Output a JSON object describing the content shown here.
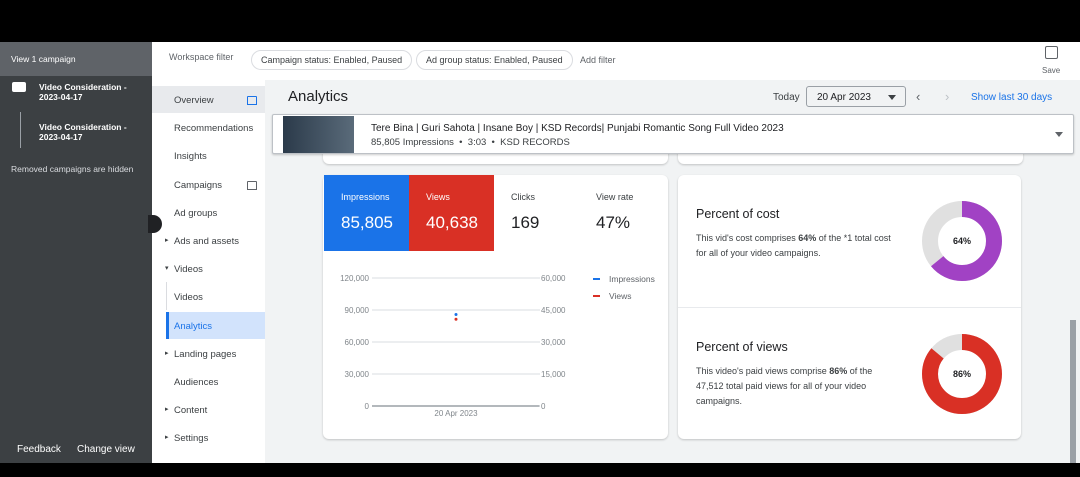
{
  "sidebar": {
    "header": "View 1 campaign",
    "campaigns": [
      "Video Consideration - 2023-04-17",
      "Video Consideration - 2023-04-17"
    ],
    "note": "Removed campaigns are hidden",
    "footer": [
      "Feedback",
      "Change view"
    ]
  },
  "topbar": {
    "workspace_filter": "Workspace filter",
    "filters": [
      "Campaign status: Enabled, Paused",
      "Ad group status: Enabled, Paused"
    ],
    "add_filter": "Add filter",
    "save": "Save"
  },
  "nav": [
    "Overview",
    "Recommendations",
    "Insights",
    "Campaigns",
    "Ad groups",
    "Ads and assets",
    "Videos",
    "Videos",
    "Analytics",
    "Landing pages",
    "Audiences",
    "Content",
    "Settings"
  ],
  "header": {
    "title": "Analytics",
    "today": "Today",
    "date": "20 Apr 2023",
    "show_last": "Show last 30 days"
  },
  "video": {
    "title": "Tere Bina | Guri Sahota | Insane Boy | KSD Records| Punjabi Romantic Song Full Video 2023",
    "meta": "85,805 Impressions  •  3:03  •  KSD RECORDS"
  },
  "metrics": [
    {
      "label": "Impressions",
      "value": "85,805"
    },
    {
      "label": "Views",
      "value": "40,638"
    },
    {
      "label": "Clicks",
      "value": "169"
    },
    {
      "label": "View rate",
      "value": "47%"
    }
  ],
  "chart_data": {
    "type": "line",
    "x": [
      "20 Apr 2023"
    ],
    "series": [
      {
        "name": "Impressions",
        "color": "#1a73e8",
        "values": [
          85805
        ]
      },
      {
        "name": "Views",
        "color": "#d93025",
        "axis": "y2",
        "values": [
          40638
        ]
      }
    ],
    "ylim": [
      0,
      120000
    ],
    "yticks": [
      0,
      {
        "value": 30000,
        "label": "30,000"
      },
      {
        "value": 60000,
        "label": "60,000"
      },
      {
        "value": 90000,
        "label": "90,000"
      },
      {
        "value": 120000,
        "label": "120,000"
      }
    ],
    "y2lim": [
      0,
      60000
    ],
    "y2ticks": [
      0,
      {
        "value": 15000,
        "label": "15,000"
      },
      {
        "value": 30000,
        "label": "30,000"
      },
      {
        "value": 45000,
        "label": "45,000"
      },
      {
        "value": 60000,
        "label": "60,000"
      }
    ],
    "grid": true,
    "legend": "top-right"
  },
  "cost": {
    "title": "Percent of cost",
    "text": [
      "This vid's cost comprises ",
      "64%",
      " of the *1 total cost for all of your video campaigns."
    ],
    "value": 64,
    "value_label": "64%",
    "color": "#a142c4"
  },
  "views": {
    "title": "Percent of views",
    "text": [
      "This video's paid views comprise ",
      "86%",
      " of the 47,512 total paid views for all of your video campaigns."
    ],
    "value": 86,
    "value_label": "86%",
    "color": "#d93025"
  }
}
